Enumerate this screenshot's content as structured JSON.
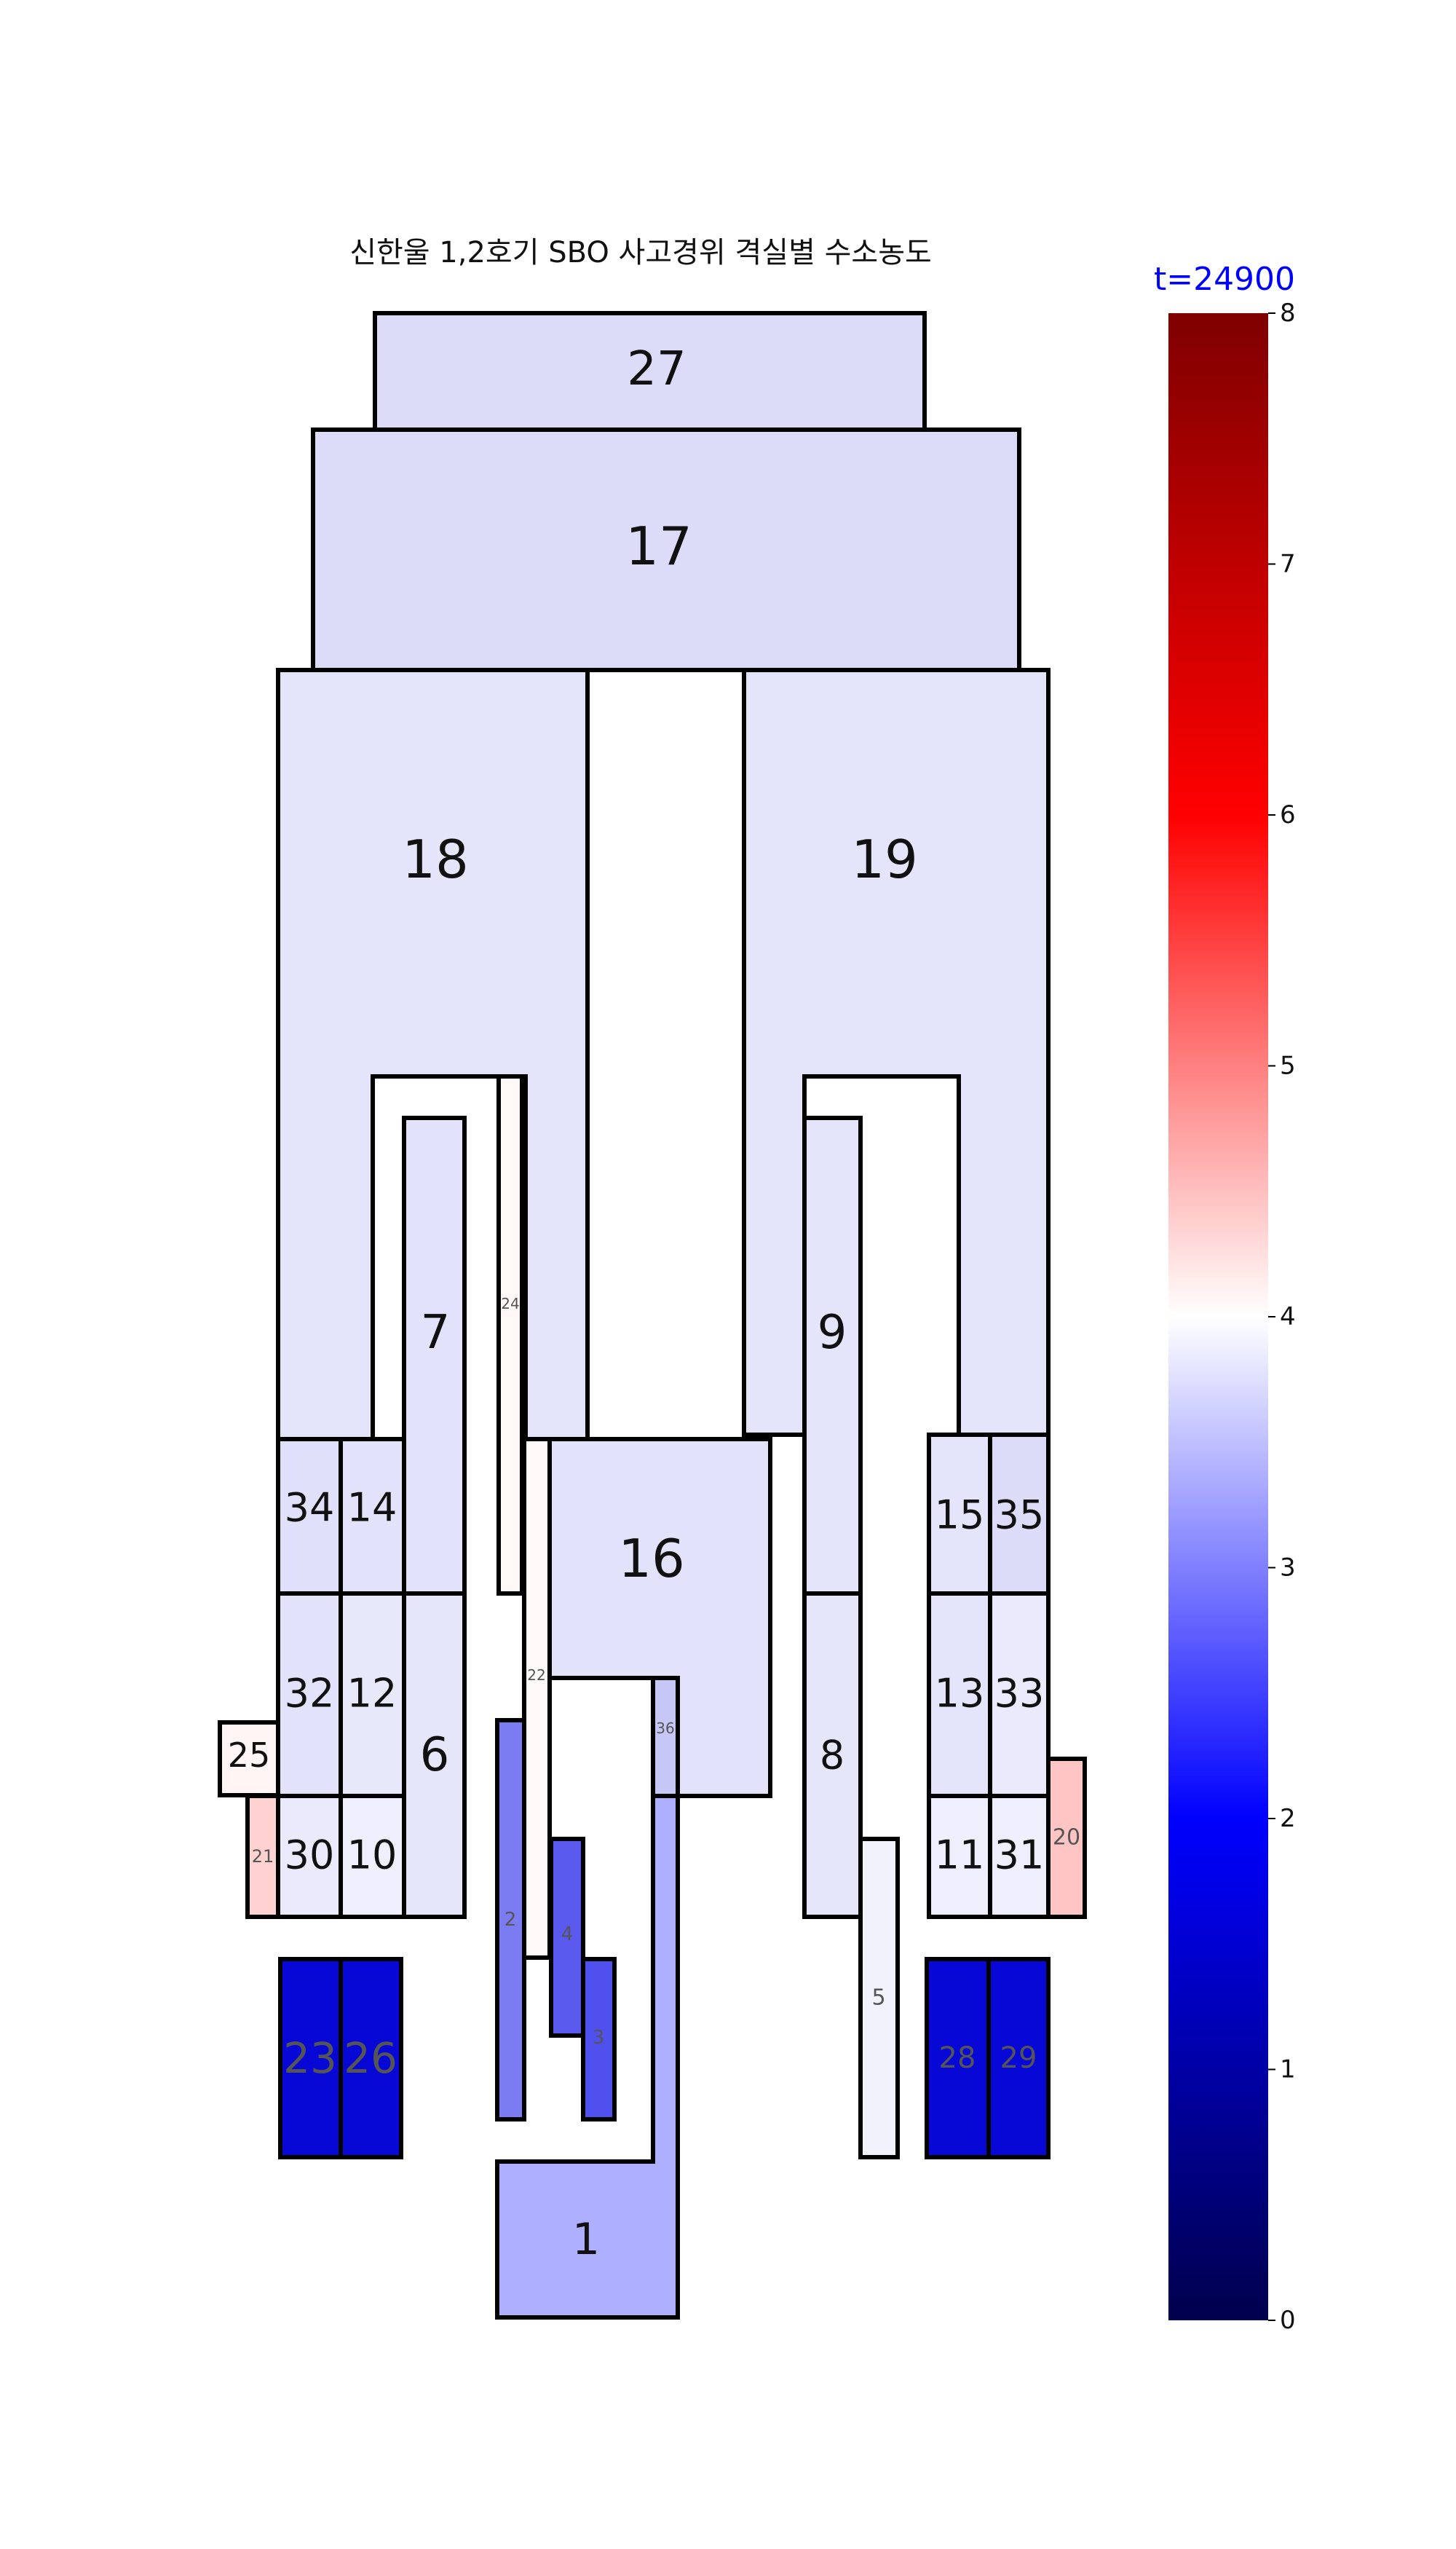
{
  "title": "신한울 1,2호기 SBO 사고경위 격실별 수소농도",
  "time_label": "t=24900",
  "colorbar": {
    "min": 0,
    "max": 8,
    "ticks": [
      "0",
      "1",
      "2",
      "3",
      "4",
      "5",
      "6",
      "7",
      "8"
    ],
    "colors": [
      "#00004c",
      "#0000ff",
      "#ffffff",
      "#ff0000",
      "#7f0000"
    ]
  },
  "rooms": [
    {
      "id": "27",
      "color": "#dcdcf9"
    },
    {
      "id": "17",
      "color": "#dcdcf9"
    },
    {
      "id": "18",
      "color": "#e4e4fb"
    },
    {
      "id": "19",
      "color": "#e4e4fb"
    },
    {
      "id": "7",
      "color": "#e2e2fa"
    },
    {
      "id": "24",
      "color": "#fff8f6"
    },
    {
      "id": "9",
      "color": "#e4e4fb"
    },
    {
      "id": "34",
      "color": "#e0e0fa"
    },
    {
      "id": "14",
      "color": "#e2e2fa"
    },
    {
      "id": "16",
      "color": "#e2e2fa"
    },
    {
      "id": "15",
      "color": "#e4e4fb"
    },
    {
      "id": "35",
      "color": "#dcdcf9"
    },
    {
      "id": "32",
      "color": "#e2e2fa"
    },
    {
      "id": "12",
      "color": "#e8e8fb"
    },
    {
      "id": "6",
      "color": "#e6e6fb"
    },
    {
      "id": "22",
      "color": "#fffafa"
    },
    {
      "id": "36",
      "color": "#c7c7f6"
    },
    {
      "id": "8",
      "color": "#e6e6fb"
    },
    {
      "id": "13",
      "color": "#e4e4fb"
    },
    {
      "id": "33",
      "color": "#eaeafc"
    },
    {
      "id": "25",
      "color": "#fff5f5"
    },
    {
      "id": "21",
      "color": "#ffd2d2"
    },
    {
      "id": "30",
      "color": "#eaeafc"
    },
    {
      "id": "10",
      "color": "#eeeefc"
    },
    {
      "id": "20",
      "color": "#ffc4c4"
    },
    {
      "id": "11",
      "color": "#eeeefc"
    },
    {
      "id": "31",
      "color": "#eeeefc"
    },
    {
      "id": "2",
      "color": "#7c7cf2"
    },
    {
      "id": "4",
      "color": "#5a5aef"
    },
    {
      "id": "3",
      "color": "#5050ee"
    },
    {
      "id": "5",
      "color": "#f2f2fd"
    },
    {
      "id": "23",
      "color": "#0808d6"
    },
    {
      "id": "26",
      "color": "#0808d6"
    },
    {
      "id": "28",
      "color": "#0808d6"
    },
    {
      "id": "29",
      "color": "#0808d6"
    },
    {
      "id": "1",
      "color": "#afafff"
    }
  ]
}
